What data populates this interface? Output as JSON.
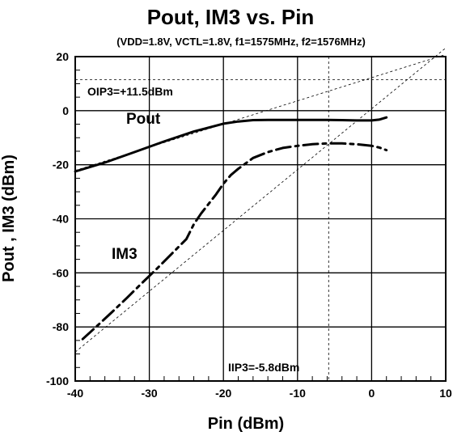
{
  "chart_data": {
    "type": "line",
    "title": "Pout, IM3 vs. Pin",
    "subtitle": "(VDD=1.8V, VCTL=1.8V, f1=1575MHz, f2=1576MHz)",
    "xlabel": "Pin (dBm)",
    "ylabel": "Pout , IM3 (dBm)",
    "xlim": [
      -40,
      10
    ],
    "ylim": [
      -100,
      20
    ],
    "xticks": [
      -40,
      -30,
      -20,
      -10,
      0,
      10
    ],
    "yticks": [
      -100,
      -80,
      -60,
      -40,
      -20,
      0,
      20
    ],
    "grid": true,
    "legend": "none",
    "series": [
      {
        "name": "Pout",
        "style": "solid",
        "x": [
          -40,
          -36,
          -32,
          -28,
          -24,
          -20,
          -18,
          -16,
          -14,
          -12,
          -10,
          -8,
          -6,
          -4,
          -2,
          0,
          1,
          2
        ],
        "y": [
          -22.5,
          -19.2,
          -15.3,
          -11.4,
          -7.7,
          -4.8,
          -4.0,
          -3.5,
          -3.4,
          -3.4,
          -3.4,
          -3.4,
          -3.4,
          -3.5,
          -3.6,
          -3.6,
          -3.3,
          -2.5
        ]
      },
      {
        "name": "IM3",
        "style": "dashed",
        "x": [
          -39,
          -37,
          -35,
          -33,
          -31,
          -29,
          -27,
          -25,
          -24,
          -23,
          -22,
          -21,
          -20,
          -19,
          -18,
          -17,
          -16,
          -14,
          -12,
          -10,
          -8,
          -6,
          -4,
          -2,
          0,
          1,
          2
        ],
        "y": [
          -84.5,
          -79.5,
          -74.4,
          -69.2,
          -63.8,
          -58.5,
          -53,
          -47.5,
          -42,
          -38,
          -34.5,
          -31,
          -27,
          -23.8,
          -21.5,
          -19.5,
          -17.5,
          -15.3,
          -13.8,
          -13.0,
          -12.4,
          -12.1,
          -12.1,
          -12.4,
          -13.0,
          -13.6,
          -14.6
        ]
      }
    ],
    "reference_lines": {
      "pout_extrapolation": {
        "x": [
          -40,
          10
        ],
        "y": [
          -22.1,
          20.8
        ]
      },
      "im3_extrapolation": {
        "x": [
          -40,
          10
        ],
        "y": [
          -89.3,
          23.2
        ]
      },
      "oip3_level_dBm": 11.5,
      "iip3_level_dBm": -5.8
    },
    "annotations": {
      "oip3": "OIP3=+11.5dBm",
      "iip3": "IIP3=-5.8dBm",
      "pout_label": "Pout",
      "im3_label": "IM3"
    }
  }
}
